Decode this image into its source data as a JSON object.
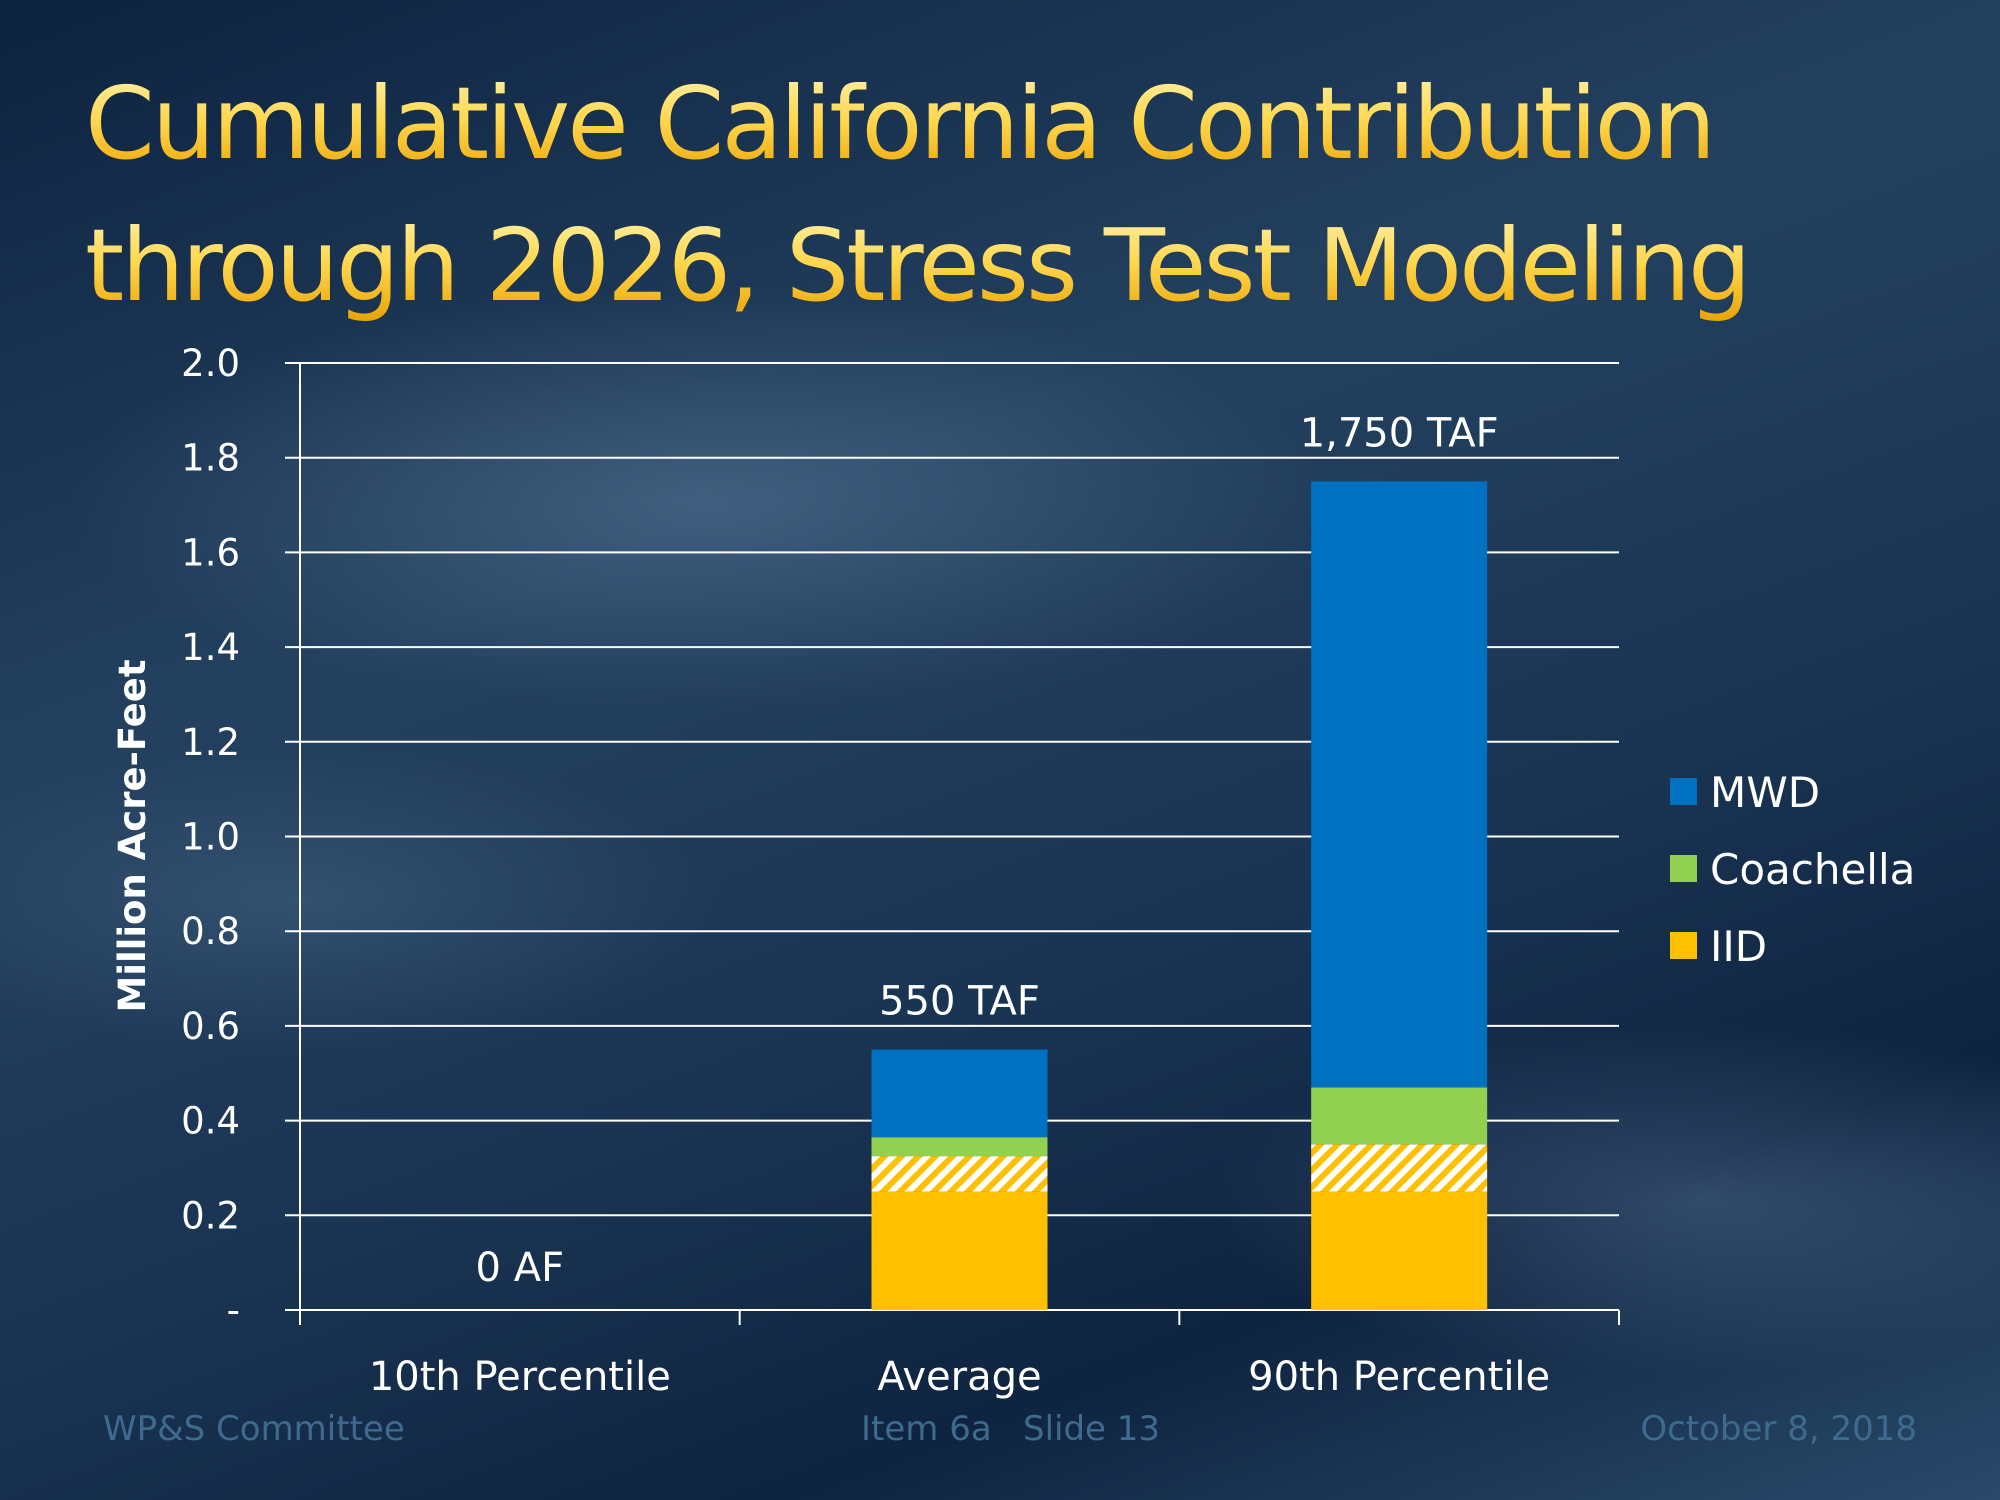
{
  "title_lines": [
    "Cumulative California Contribution",
    "through 2026, Stress Test Modeling"
  ],
  "footer": {
    "left": "WP&S Committee",
    "item": "Item 6a",
    "slide": "Slide 13",
    "date": "October 8, 2018"
  },
  "chart_data": {
    "type": "bar",
    "stacked": true,
    "title": "Cumulative California Contribution through 2026, Stress Test Modeling",
    "ylabel": "Million Acre-Feet",
    "xlabel": "",
    "ylim": [
      0,
      2.0
    ],
    "y_ticks": [
      "-",
      "0.2",
      "0.4",
      "0.6",
      "0.8",
      "1.0",
      "1.2",
      "1.4",
      "1.6",
      "1.8",
      "2.0"
    ],
    "grid": true,
    "legend_position": "right",
    "categories": [
      "10th Percentile",
      "Average",
      "90th Percentile"
    ],
    "data_labels": [
      "0 AF",
      "550 TAF",
      "1,750 TAF"
    ],
    "series": [
      {
        "name": "IID",
        "color": "#ffc000",
        "values": [
          0,
          0.25,
          0.25
        ]
      },
      {
        "color": "#ffc000",
        "pattern": "hatched",
        "values": [
          0,
          0.075,
          0.1
        ]
      },
      {
        "name": "Coachella",
        "color": "#92d050",
        "values": [
          0,
          0.04,
          0.12
        ]
      },
      {
        "name": "MWD",
        "color": "#0070c0",
        "values": [
          0,
          0.185,
          1.28
        ]
      }
    ],
    "legend": [
      {
        "name": "MWD",
        "color": "#0070c0"
      },
      {
        "name": "Coachella",
        "color": "#92d050"
      },
      {
        "name": "IID",
        "color": "#ffc000"
      }
    ]
  }
}
